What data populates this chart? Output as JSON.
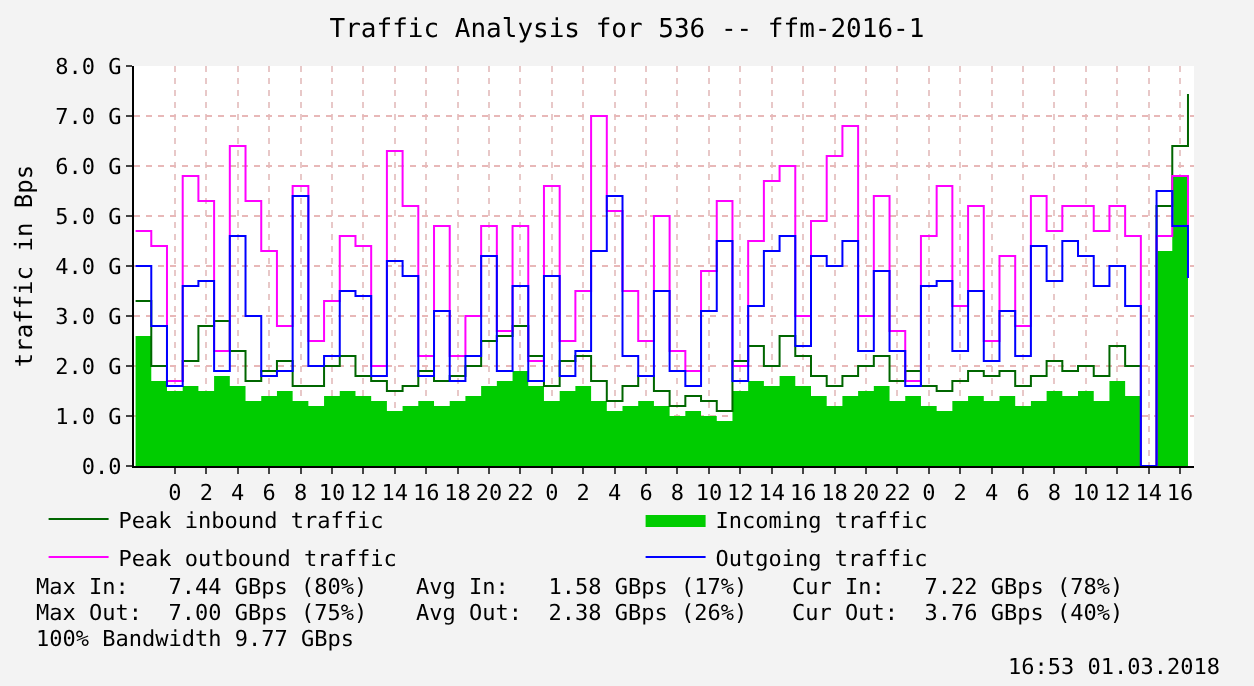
{
  "chart_data": {
    "type": "step",
    "title": "Traffic Analysis for 536 -- ffm-2016-1",
    "ylabel": "traffic in Bps",
    "x": [
      "2018-02-26T21:30",
      "2018-02-26T22:30",
      "2018-02-26T23:30",
      "2018-02-27T00:30",
      "2018-02-27T01:30",
      "2018-02-27T02:30",
      "2018-02-27T03:30",
      "2018-02-27T04:30",
      "2018-02-27T05:30",
      "2018-02-27T06:30",
      "2018-02-27T07:30",
      "2018-02-27T08:30",
      "2018-02-27T09:30",
      "2018-02-27T10:30",
      "2018-02-27T11:30",
      "2018-02-27T12:30",
      "2018-02-27T13:30",
      "2018-02-27T14:30",
      "2018-02-27T15:30",
      "2018-02-27T16:30",
      "2018-02-27T17:30",
      "2018-02-27T18:30",
      "2018-02-27T19:30",
      "2018-02-27T20:30",
      "2018-02-27T21:30",
      "2018-02-27T22:30",
      "2018-02-27T23:30",
      "2018-02-28T00:30",
      "2018-02-28T01:30",
      "2018-02-28T02:30",
      "2018-02-28T03:30",
      "2018-02-28T04:30",
      "2018-02-28T05:30",
      "2018-02-28T06:30",
      "2018-02-28T07:30",
      "2018-02-28T08:30",
      "2018-02-28T09:30",
      "2018-02-28T10:30",
      "2018-02-28T11:30",
      "2018-02-28T12:30",
      "2018-02-28T13:30",
      "2018-02-28T14:30",
      "2018-02-28T15:30",
      "2018-02-28T16:30",
      "2018-02-28T17:30",
      "2018-02-28T18:30",
      "2018-02-28T19:30",
      "2018-02-28T20:30",
      "2018-02-28T21:30",
      "2018-02-28T22:30",
      "2018-02-28T23:30",
      "2018-03-01T00:30",
      "2018-03-01T01:30",
      "2018-03-01T02:30",
      "2018-03-01T03:30",
      "2018-03-01T04:30",
      "2018-03-01T05:30",
      "2018-03-01T06:30",
      "2018-03-01T07:30",
      "2018-03-01T08:30",
      "2018-03-01T09:30",
      "2018-03-01T10:30",
      "2018-03-01T11:30",
      "2018-03-01T12:30",
      "2018-03-01T13:30",
      "2018-03-01T14:30",
      "2018-03-01T15:30",
      "2018-03-01T16:30"
    ],
    "series": [
      {
        "name": "Peak inbound traffic",
        "color": "#006600",
        "values": [
          3.3,
          2.0,
          1.7,
          2.1,
          2.8,
          2.9,
          2.3,
          1.7,
          1.9,
          2.1,
          1.6,
          1.6,
          2.0,
          2.2,
          1.8,
          1.7,
          1.5,
          1.6,
          1.9,
          1.7,
          1.8,
          2.0,
          2.5,
          2.6,
          2.8,
          2.2,
          1.6,
          2.1,
          2.2,
          1.7,
          1.3,
          1.6,
          1.8,
          1.5,
          1.2,
          1.4,
          1.3,
          1.1,
          2.1,
          2.4,
          2.0,
          2.6,
          2.2,
          1.8,
          1.6,
          1.8,
          2.0,
          2.2,
          1.7,
          1.9,
          1.6,
          1.5,
          1.7,
          1.9,
          1.8,
          1.9,
          1.6,
          1.8,
          2.1,
          1.9,
          2.0,
          1.8,
          2.4,
          2.0,
          0.0,
          5.2,
          6.4,
          7.44
        ]
      },
      {
        "name": "Incoming traffic",
        "color": "#00cc00",
        "type": "area",
        "values": [
          2.6,
          1.7,
          1.5,
          1.6,
          1.5,
          1.8,
          1.6,
          1.3,
          1.4,
          1.5,
          1.3,
          1.2,
          1.4,
          1.5,
          1.4,
          1.3,
          1.1,
          1.2,
          1.3,
          1.2,
          1.3,
          1.4,
          1.6,
          1.7,
          1.9,
          1.6,
          1.3,
          1.5,
          1.6,
          1.3,
          1.1,
          1.2,
          1.3,
          1.2,
          1.0,
          1.1,
          1.0,
          0.9,
          1.5,
          1.7,
          1.6,
          1.8,
          1.6,
          1.4,
          1.2,
          1.4,
          1.5,
          1.6,
          1.3,
          1.4,
          1.2,
          1.1,
          1.3,
          1.4,
          1.3,
          1.4,
          1.2,
          1.3,
          1.5,
          1.4,
          1.5,
          1.3,
          1.7,
          1.4,
          0.0,
          4.3,
          5.8,
          7.22
        ]
      },
      {
        "name": "Peak outbound traffic",
        "color": "#ff00ff",
        "values": [
          4.7,
          4.4,
          1.7,
          5.8,
          5.3,
          2.3,
          6.4,
          5.3,
          4.3,
          2.8,
          5.6,
          2.5,
          3.3,
          4.6,
          4.4,
          2.0,
          6.3,
          5.2,
          2.2,
          4.8,
          2.2,
          3.0,
          4.8,
          2.7,
          4.8,
          2.1,
          5.6,
          2.5,
          3.5,
          7.0,
          5.1,
          3.5,
          2.5,
          5.0,
          2.3,
          1.9,
          3.9,
          5.3,
          2.0,
          4.5,
          5.7,
          6.0,
          3.0,
          4.9,
          6.2,
          6.8,
          3.0,
          5.4,
          2.7,
          1.7,
          4.6,
          5.6,
          3.2,
          5.2,
          2.5,
          4.2,
          2.8,
          5.4,
          4.7,
          5.2,
          5.2,
          4.7,
          5.2,
          4.6,
          0.0,
          4.6,
          5.8,
          4.8
        ]
      },
      {
        "name": "Outgoing traffic",
        "color": "#0000ff",
        "values": [
          4.0,
          2.8,
          1.6,
          3.6,
          3.7,
          1.9,
          4.6,
          3.0,
          1.8,
          1.9,
          5.4,
          2.0,
          2.2,
          3.5,
          3.4,
          1.8,
          4.1,
          3.8,
          1.8,
          3.1,
          1.7,
          2.2,
          4.2,
          1.9,
          3.6,
          1.7,
          3.8,
          1.8,
          2.3,
          4.3,
          5.4,
          2.2,
          1.8,
          3.5,
          1.9,
          1.6,
          3.1,
          4.5,
          1.7,
          3.2,
          4.3,
          4.6,
          2.4,
          4.2,
          4.0,
          4.5,
          2.3,
          3.9,
          2.3,
          1.6,
          3.6,
          3.7,
          2.3,
          3.5,
          2.1,
          3.1,
          2.2,
          4.4,
          3.7,
          4.5,
          4.2,
          3.6,
          4.0,
          3.2,
          0.0,
          5.5,
          4.8,
          3.76
        ]
      }
    ],
    "xlim": [
      "2018-02-26T21:24",
      "2018-03-01T16:53"
    ],
    "xticks": [
      {
        "value": "2018-02-27T00:00",
        "label": "0"
      },
      {
        "value": "2018-02-27T02:00",
        "label": "2"
      },
      {
        "value": "2018-02-27T04:00",
        "label": "4"
      },
      {
        "value": "2018-02-27T06:00",
        "label": "6"
      },
      {
        "value": "2018-02-27T08:00",
        "label": "8"
      },
      {
        "value": "2018-02-27T10:00",
        "label": "10"
      },
      {
        "value": "2018-02-27T12:00",
        "label": "12"
      },
      {
        "value": "2018-02-27T14:00",
        "label": "14"
      },
      {
        "value": "2018-02-27T16:00",
        "label": "16"
      },
      {
        "value": "2018-02-27T18:00",
        "label": "18"
      },
      {
        "value": "2018-02-27T20:00",
        "label": "20"
      },
      {
        "value": "2018-02-27T22:00",
        "label": "22"
      },
      {
        "value": "2018-02-28T00:00",
        "label": "0"
      },
      {
        "value": "2018-02-28T02:00",
        "label": "2"
      },
      {
        "value": "2018-02-28T04:00",
        "label": "4"
      },
      {
        "value": "2018-02-28T06:00",
        "label": "6"
      },
      {
        "value": "2018-02-28T08:00",
        "label": "8"
      },
      {
        "value": "2018-02-28T10:00",
        "label": "10"
      },
      {
        "value": "2018-02-28T12:00",
        "label": "12"
      },
      {
        "value": "2018-02-28T14:00",
        "label": "14"
      },
      {
        "value": "2018-02-28T16:00",
        "label": "16"
      },
      {
        "value": "2018-02-28T18:00",
        "label": "18"
      },
      {
        "value": "2018-02-28T20:00",
        "label": "20"
      },
      {
        "value": "2018-02-28T22:00",
        "label": "22"
      },
      {
        "value": "2018-03-01T00:00",
        "label": "0"
      },
      {
        "value": "2018-03-01T02:00",
        "label": "2"
      },
      {
        "value": "2018-03-01T04:00",
        "label": "4"
      },
      {
        "value": "2018-03-01T06:00",
        "label": "6"
      },
      {
        "value": "2018-03-01T08:00",
        "label": "8"
      },
      {
        "value": "2018-03-01T10:00",
        "label": "10"
      },
      {
        "value": "2018-03-01T12:00",
        "label": "12"
      },
      {
        "value": "2018-03-01T14:00",
        "label": "14"
      },
      {
        "value": "2018-03-01T16:00",
        "label": "16"
      }
    ],
    "ylim": [
      0,
      8
    ],
    "yticks": [
      {
        "value": 0,
        "label": "0.0"
      },
      {
        "value": 1,
        "label": "1.0 G"
      },
      {
        "value": 2,
        "label": "2.0 G"
      },
      {
        "value": 3,
        "label": "3.0 G"
      },
      {
        "value": 4,
        "label": "4.0 G"
      },
      {
        "value": 5,
        "label": "5.0 G"
      },
      {
        "value": 6,
        "label": "6.0 G"
      },
      {
        "value": 7,
        "label": "7.0 G"
      },
      {
        "value": 8,
        "label": "8.0 G"
      }
    ],
    "grid": true,
    "legend": "bottom",
    "annotations": [
      "Max In:   7.44 GBps (80%)",
      "Avg In:   1.58 GBps (17%)",
      "Cur In:   7.22 GBps (78%)",
      "Max Out:  7.00 GBps (75%)",
      "Avg Out:  2.38 GBps (26%)",
      "Cur Out:  3.76 GBps (40%)",
      "100% Bandwidth 9.77 GBps",
      "16:53 01.03.2018"
    ]
  }
}
